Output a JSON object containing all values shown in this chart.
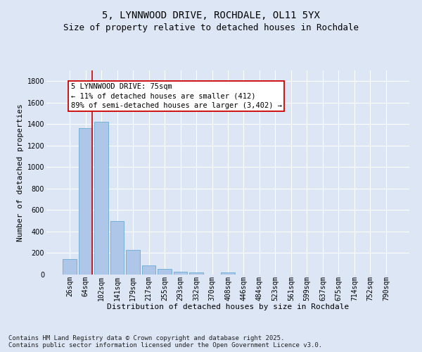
{
  "title_line1": "5, LYNNWOOD DRIVE, ROCHDALE, OL11 5YX",
  "title_line2": "Size of property relative to detached houses in Rochdale",
  "xlabel": "Distribution of detached houses by size in Rochdale",
  "ylabel": "Number of detached properties",
  "categories": [
    "26sqm",
    "64sqm",
    "102sqm",
    "141sqm",
    "179sqm",
    "217sqm",
    "255sqm",
    "293sqm",
    "332sqm",
    "370sqm",
    "408sqm",
    "446sqm",
    "484sqm",
    "523sqm",
    "561sqm",
    "599sqm",
    "637sqm",
    "675sqm",
    "714sqm",
    "752sqm",
    "790sqm"
  ],
  "values": [
    145,
    1365,
    1425,
    500,
    228,
    88,
    50,
    28,
    20,
    0,
    18,
    0,
    0,
    0,
    0,
    0,
    0,
    0,
    0,
    0,
    0
  ],
  "bar_color": "#aec6e8",
  "bar_edge_color": "#6aaad4",
  "vline_color": "#cc0000",
  "annotation_text": "5 LYNNWOOD DRIVE: 75sqm\n← 11% of detached houses are smaller (412)\n89% of semi-detached houses are larger (3,402) →",
  "annotation_box_color": "#ffffff",
  "annotation_box_edge": "#cc0000",
  "ylim": [
    0,
    1900
  ],
  "yticks": [
    0,
    200,
    400,
    600,
    800,
    1000,
    1200,
    1400,
    1600,
    1800
  ],
  "background_color": "#dce6f5",
  "grid_color": "#ffffff",
  "footer_line1": "Contains HM Land Registry data © Crown copyright and database right 2025.",
  "footer_line2": "Contains public sector information licensed under the Open Government Licence v3.0.",
  "title_fontsize": 10,
  "subtitle_fontsize": 9,
  "axis_label_fontsize": 8,
  "tick_fontsize": 7,
  "annotation_fontsize": 7.5,
  "footer_fontsize": 6.5
}
